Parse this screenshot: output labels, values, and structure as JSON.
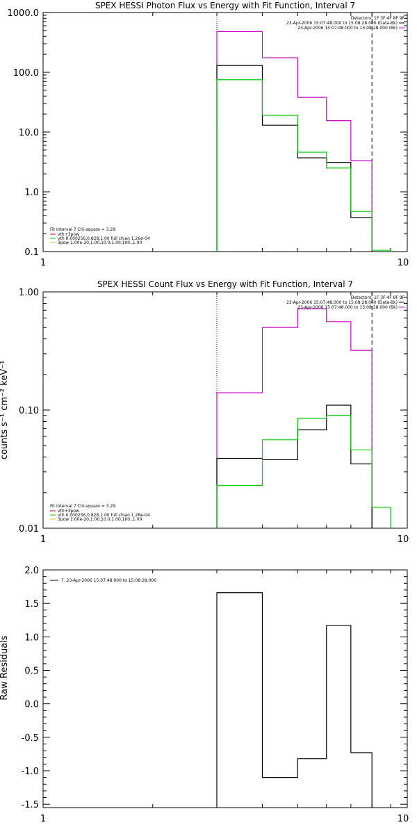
{
  "chart_data": [
    {
      "type": "line",
      "title": "SPEX HESSI Photon Flux vs Energy with Fit Function, Interval 7",
      "ylabel": "",
      "xscale": "log",
      "yscale": "log",
      "xlim": [
        1,
        10
      ],
      "ylim": [
        0.1,
        1000
      ],
      "xtick_labels": [
        "1",
        "10"
      ],
      "ytick_labels": [
        "0.1",
        "1.0",
        "10.0",
        "100.0",
        "1000.0"
      ],
      "detectors_text": "Detectors: 1F 3F 4F 8F 9F",
      "legend_right": [
        {
          "text": "23-Apr-2006 15:07:48.000 to 15:08:28.000 (Data-Bk)",
          "color": "#000000"
        },
        {
          "text": "23-Apr-2006 15:07:48.000 to 15:08:28.000 (Bk)",
          "color": "#cc00cc"
        }
      ],
      "legend_left_header": "Fit Interval 7    Chi-square = 3.29",
      "legend_left": [
        {
          "text": "vth+3pow",
          "color": "#cc0000"
        },
        {
          "text": "vth 0.000256,0.828,1.00  full chian 1.26e-04",
          "color": "#00cc00"
        },
        {
          "text": "3pow 1.00e-20,1.00,10.0,1.00,100.,1.00",
          "color": "#cccc00"
        }
      ],
      "vlines": [
        {
          "x": 3.0,
          "style": "dotted",
          "color": "#000000"
        },
        {
          "x": 8.0,
          "style": "dashed",
          "color": "#000000"
        }
      ],
      "series": [
        {
          "color": "#cc00cc",
          "edges": [
            3,
            4,
            5,
            6,
            7,
            8
          ],
          "values": [
            480,
            175,
            38,
            15.5,
            3.3
          ]
        },
        {
          "color": "#000000",
          "edges": [
            3,
            4,
            5,
            6,
            7,
            8
          ],
          "values": [
            130,
            13,
            3.7,
            3.1,
            0.37
          ]
        },
        {
          "color": "#00cc00",
          "edges": [
            3,
            4,
            5,
            6,
            7,
            8,
            9
          ],
          "values": [
            75,
            19,
            4.6,
            2.5,
            0.47,
            0.105
          ]
        }
      ]
    },
    {
      "type": "line",
      "title": "SPEX HESSI Count Flux vs Energy with Fit Function, Interval 7",
      "ylabel": "counts s⁻¹ cm⁻² keV⁻¹",
      "xscale": "log",
      "yscale": "log",
      "xlim": [
        1,
        10
      ],
      "ylim": [
        0.01,
        1.0
      ],
      "xtick_labels": [
        "1",
        "10"
      ],
      "ytick_labels": [
        "0.01",
        "0.10",
        "1.00"
      ],
      "detectors_text": "Detectors: 1F 3F 4F 8F 9F",
      "legend_right": [
        {
          "text": "23-Apr-2006 15:07:48.000 to 15:08:28.000 (Data-Bk)",
          "color": "#000000"
        },
        {
          "text": "23-Apr-2006 15:07:48.000 to 15:08:28.000 (Bk)",
          "color": "#cc00cc"
        }
      ],
      "legend_left_header": "Fit Interval 7    Chi-square = 3.29",
      "legend_left": [
        {
          "text": "vth+3pow",
          "color": "#cc0000"
        },
        {
          "text": "vth 0.000256,0.828,1.00  full chian 1.26e-04",
          "color": "#00cc00"
        },
        {
          "text": "3pow 1.00e-20,1.00,10.0,1.00,100.,1.00",
          "color": "#cccc00"
        }
      ],
      "vlines": [
        {
          "x": 3.0,
          "style": "dotted",
          "color": "#000000"
        },
        {
          "x": 8.0,
          "style": "dashed",
          "color": "#000000"
        }
      ],
      "series": [
        {
          "color": "#cc00cc",
          "edges": [
            3,
            4,
            5,
            6,
            7,
            8
          ],
          "values": [
            0.14,
            0.5,
            0.72,
            0.56,
            0.32
          ]
        },
        {
          "color": "#000000",
          "edges": [
            3,
            4,
            5,
            6,
            7,
            8
          ],
          "values": [
            0.039,
            0.038,
            0.068,
            0.11,
            0.035
          ]
        },
        {
          "color": "#00cc00",
          "edges": [
            3,
            4,
            5,
            6,
            7,
            8,
            9
          ],
          "values": [
            0.023,
            0.056,
            0.085,
            0.09,
            0.046,
            0.015
          ]
        }
      ]
    },
    {
      "type": "line",
      "title": "",
      "ylabel": "Raw Residuals",
      "xscale": "log",
      "yscale": "linear",
      "xlim": [
        1,
        10
      ],
      "ylim": [
        -1.55,
        2.0
      ],
      "xtick_labels": [
        "1",
        "10"
      ],
      "ytick_values": [
        -1.5,
        -1.0,
        -0.5,
        0.0,
        0.5,
        1.0,
        1.5,
        2.0
      ],
      "ytick_labels": [
        "-1.5",
        "-1.0",
        "-0.5",
        "0.0",
        "0.5",
        "1.0",
        "1.5",
        "2.0"
      ],
      "legend_left": [
        {
          "text": "7. 23-Apr-2006 15:07:48.000 to 15:08:28.000",
          "color": "#000000"
        }
      ],
      "series": [
        {
          "color": "#000000",
          "edges": [
            3,
            4,
            5,
            6,
            7,
            8
          ],
          "values": [
            1.66,
            -1.1,
            -0.82,
            1.17,
            -0.73
          ]
        }
      ]
    }
  ]
}
